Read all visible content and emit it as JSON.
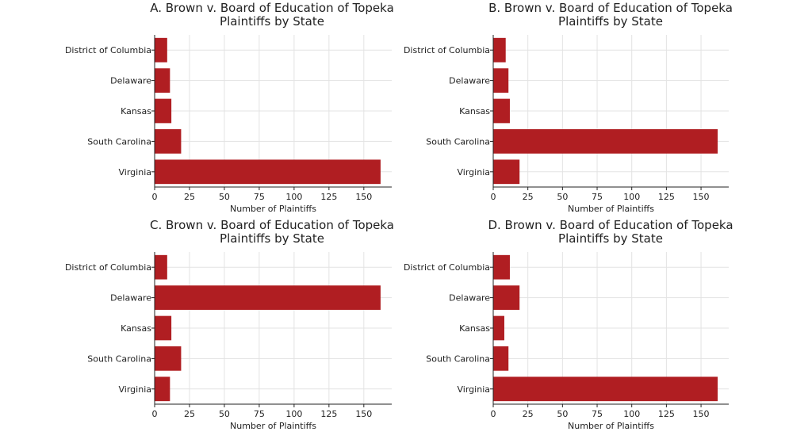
{
  "chart_data": [
    {
      "type": "bar",
      "orientation": "horizontal",
      "title": "A. Brown v. Board of Education of Topeka",
      "subtitle": "Plaintiffs by State",
      "categories": [
        "District of Columbia",
        "Delaware",
        "Kansas",
        "South Carolina",
        "Virginia"
      ],
      "values": [
        9,
        11,
        12,
        19,
        162
      ],
      "xlabel": "Number of Plaintiffs",
      "ylabel": "",
      "xlim": [
        0,
        170
      ],
      "xticks": [
        "0",
        "25",
        "50",
        "75",
        "100",
        "125",
        "150"
      ],
      "grid": true,
      "color": "#b01e22"
    },
    {
      "type": "bar",
      "orientation": "horizontal",
      "title": "B. Brown v. Board of Education of Topeka",
      "subtitle": "Plaintiffs by State",
      "categories": [
        "District of Columbia",
        "Delaware",
        "Kansas",
        "South Carolina",
        "Virginia"
      ],
      "values": [
        9,
        11,
        12,
        162,
        19
      ],
      "xlabel": "Number of Plaintiffs",
      "ylabel": "",
      "xlim": [
        0,
        170
      ],
      "xticks": [
        "0",
        "25",
        "50",
        "75",
        "100",
        "125",
        "150"
      ],
      "grid": true,
      "color": "#b01e22"
    },
    {
      "type": "bar",
      "orientation": "horizontal",
      "title": "C. Brown v. Board of Education of Topeka",
      "subtitle": "Plaintiffs by State",
      "categories": [
        "District of Columbia",
        "Delaware",
        "Kansas",
        "South Carolina",
        "Virginia"
      ],
      "values": [
        9,
        162,
        12,
        19,
        11
      ],
      "xlabel": "Number of Plaintiffs",
      "ylabel": "",
      "xlim": [
        0,
        170
      ],
      "xticks": [
        "0",
        "25",
        "50",
        "75",
        "100",
        "125",
        "150"
      ],
      "grid": true,
      "color": "#b01e22"
    },
    {
      "type": "bar",
      "orientation": "horizontal",
      "title": "D. Brown v. Board of Education of Topeka",
      "subtitle": "Plaintiffs by State",
      "categories": [
        "District of Columbia",
        "Delaware",
        "Kansas",
        "South Carolina",
        "Virginia"
      ],
      "values": [
        12,
        19,
        8,
        11,
        162
      ],
      "xlabel": "Number of Plaintiffs",
      "ylabel": "",
      "xlim": [
        0,
        170
      ],
      "xticks": [
        "0",
        "25",
        "50",
        "75",
        "100",
        "125",
        "150"
      ],
      "grid": true,
      "color": "#b01e22"
    }
  ]
}
